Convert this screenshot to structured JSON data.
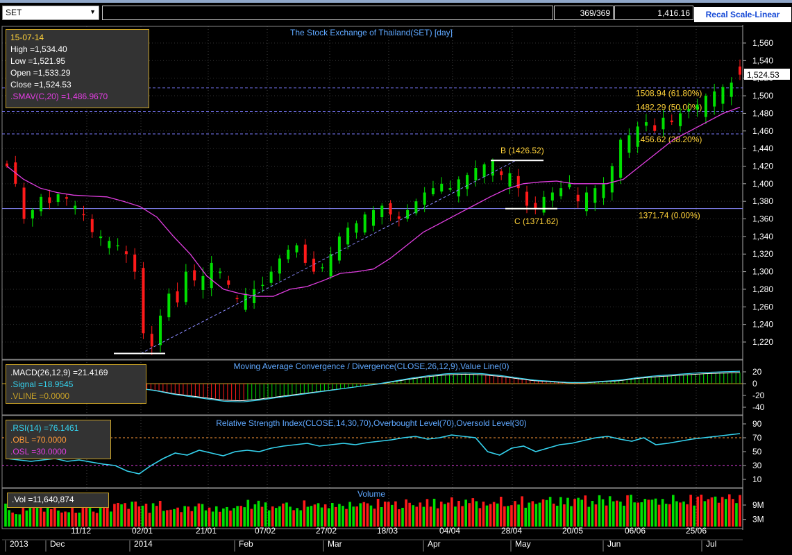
{
  "toolbar": {
    "symbol": "SET",
    "bar_count": "369/369",
    "last_value": "1,416.16",
    "recal_label": "Recal Scale-Linear"
  },
  "ohlc_box": {
    "date": "15-07-14",
    "high": "High  =1,534.40",
    "low": "Low  =1,521.95",
    "open": "Open  =1,533.29",
    "close": "Close  =1,524.53",
    "sma": ".SMAV(C,20)  =1,486.9670"
  },
  "macd_box": {
    "macd": ".MACD(26,12,9)  =21.4169",
    "signal": ".Signal  =18.9545",
    "vline": ".VLINE  =0.0000"
  },
  "rsi_box": {
    "rsi": ".RSI(14)  =76.1461",
    "obl": ".OBL  =70.0000",
    "osl": ".OSL  =30.0000"
  },
  "vol_box": {
    "vol": ".Vol  =11,640,874"
  },
  "titles": {
    "price": "The Stock Exchange of Thailand(SET) [day]",
    "macd": "Moving Average Convergence / Divergence(CLOSE,26,12,9),Value Line(0)",
    "rsi": "Relative Strength Index(CLOSE,14,30,70),Overbought Level(70),Oversold Level(30)",
    "volume": "Volume"
  },
  "colors": {
    "up": "#00e000",
    "down": "#ff1a1a",
    "sma": "#e23ee2",
    "rsi": "#35d4f0",
    "macd": "#35d4f0",
    "fib": "#7b7bff",
    "label": "#ffd23a"
  },
  "annotations": {
    "b_label": "B (1426.52)",
    "c_label": "C (1371.62)",
    "fib_618": "1508.94 (61.80%)",
    "fib_50": "1482.29 (50.00%)",
    "fib_382": "1456.62 (38.20%)",
    "fib_0": "1371.74 (0.00%)",
    "last_price": "1,524.53"
  },
  "date_axis": {
    "row1": [
      "11/12",
      "02/01",
      "21/01",
      "07/02",
      "27/02",
      "18/03",
      "04/04",
      "28/04",
      "20/05",
      "06/06",
      "25/06"
    ],
    "row2": [
      "2013",
      "Dec",
      "2014",
      "Feb",
      "Mar",
      "Apr",
      "May",
      "Jun",
      "Jul"
    ]
  },
  "chart_data": [
    {
      "type": "candlestick",
      "title": "The Stock Exchange of Thailand(SET) [day]",
      "y_ticks": [
        "1,560",
        "1,540",
        "1,520",
        "1,500",
        "1,480",
        "1,460",
        "1,440",
        "1,420",
        "1,400",
        "1,380",
        "1,360",
        "1,340",
        "1,320",
        "1,300",
        "1,280",
        "1,260",
        "1,240",
        "1,220"
      ],
      "ylim": [
        1200,
        1570
      ],
      "close_path": [
        1420,
        1400,
        1360,
        1370,
        1385,
        1378,
        1388,
        1383,
        1375,
        1365,
        1345,
        1340,
        1335,
        1330,
        1320,
        1300,
        1230,
        1215,
        1250,
        1275,
        1265,
        1300,
        1290,
        1295,
        1310,
        1300,
        1285,
        1270,
        1275,
        1280,
        1285,
        1300,
        1315,
        1325,
        1330,
        1310,
        1300,
        1305,
        1320,
        1340,
        1350,
        1355,
        1365,
        1370,
        1375,
        1365,
        1360,
        1370,
        1380,
        1390,
        1395,
        1400,
        1395,
        1405,
        1410,
        1418,
        1422,
        1426,
        1410,
        1412,
        1395,
        1375,
        1372,
        1385,
        1390,
        1395,
        1400,
        1380,
        1390,
        1395,
        1400,
        1420,
        1450,
        1455,
        1465,
        1470,
        1460,
        1475,
        1470,
        1480,
        1485,
        1490,
        1500,
        1505,
        1510,
        1515,
        1524
      ],
      "sma_path": [
        1420,
        1405,
        1395,
        1390,
        1387,
        1386,
        1385,
        1380,
        1374,
        1362,
        1340,
        1320,
        1295,
        1280,
        1275,
        1272,
        1272,
        1280,
        1283,
        1290,
        1298,
        1300,
        1303,
        1315,
        1330,
        1345,
        1355,
        1365,
        1375,
        1385,
        1394,
        1400,
        1402,
        1403,
        1400,
        1400,
        1400,
        1405,
        1420,
        1435,
        1450,
        1460,
        1470,
        1480,
        1487
      ],
      "fib_levels": [
        {
          "label": "1508.94 (61.80%)",
          "value": 1508.94
        },
        {
          "label": "1482.29 (50.00%)",
          "value": 1482.29
        },
        {
          "label": "1456.62 (38.20%)",
          "value": 1456.62
        },
        {
          "label": "1371.74 (0.00%)",
          "value": 1371.74
        }
      ],
      "annotations": [
        "B (1426.52)",
        "C (1371.62)"
      ],
      "last_price": 1524.53
    },
    {
      "type": "bar",
      "title": "Moving Average Convergence / Divergence(CLOSE,26,12,9),Value Line(0)",
      "y_ticks": [
        "20",
        "0",
        "-20",
        "-40"
      ],
      "ylim": [
        -45,
        25
      ],
      "macd_path": [
        -8,
        -12,
        -18,
        -22,
        -26,
        -30,
        -31,
        -28,
        -24,
        -20,
        -16,
        -12,
        -8,
        -4,
        0,
        5,
        10,
        14,
        17,
        18,
        17,
        14,
        10,
        6,
        4,
        2,
        2,
        4,
        6,
        10,
        13,
        15,
        17,
        19,
        20,
        21
      ]
    },
    {
      "type": "line",
      "title": "Relative Strength Index(CLOSE,14,30,70),Overbought Level(70),Oversold Level(30)",
      "y_ticks": [
        "90",
        "70",
        "50",
        "30",
        "10"
      ],
      "ylim": [
        0,
        95
      ],
      "overbought": 70,
      "oversold": 30,
      "rsi_path": [
        40,
        38,
        36,
        38,
        40,
        36,
        38,
        35,
        32,
        30,
        22,
        18,
        30,
        40,
        48,
        45,
        52,
        48,
        44,
        50,
        52,
        50,
        55,
        58,
        60,
        62,
        58,
        60,
        62,
        60,
        63,
        65,
        67,
        70,
        72,
        68,
        70,
        74,
        72,
        70,
        50,
        45,
        55,
        58,
        50,
        55,
        60,
        62,
        66,
        70,
        72,
        68,
        65,
        70,
        60,
        62,
        65,
        68,
        70,
        72,
        74,
        76
      ]
    },
    {
      "type": "bar",
      "title": "Volume",
      "y_ticks": [
        "9M",
        "3M"
      ],
      "ylim": [
        0,
        14
      ]
    }
  ]
}
